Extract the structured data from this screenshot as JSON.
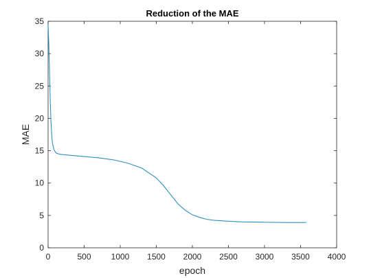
{
  "chart_data": {
    "type": "line",
    "title": "Reduction of the MAE",
    "xlabel": "epoch",
    "ylabel": "MAE",
    "xlim": [
      0,
      4000
    ],
    "ylim": [
      0,
      35
    ],
    "xticks": [
      0,
      500,
      1000,
      1500,
      2000,
      2500,
      3000,
      3500,
      4000
    ],
    "yticks": [
      0,
      5,
      10,
      15,
      20,
      25,
      30,
      35
    ],
    "grid": false,
    "colors": {
      "line": "#2a8fbd",
      "axis": "#262626"
    },
    "series": [
      {
        "x": [
          0,
          10,
          20,
          30,
          40,
          50,
          60,
          80,
          100,
          120,
          150,
          200,
          300,
          500,
          700,
          900,
          1100,
          1300,
          1500,
          1600,
          1700,
          1800,
          1900,
          2000,
          2100,
          2200,
          2300,
          2500,
          2700,
          3000,
          3300,
          3580
        ],
        "y": [
          34.5,
          31.5,
          27.0,
          22.5,
          19.5,
          17.5,
          16.2,
          15.2,
          14.8,
          14.6,
          14.5,
          14.4,
          14.3,
          14.1,
          13.9,
          13.6,
          13.1,
          12.3,
          10.8,
          9.6,
          8.2,
          6.8,
          5.8,
          5.1,
          4.7,
          4.4,
          4.25,
          4.1,
          4.0,
          3.95,
          3.9,
          3.9
        ]
      }
    ]
  }
}
